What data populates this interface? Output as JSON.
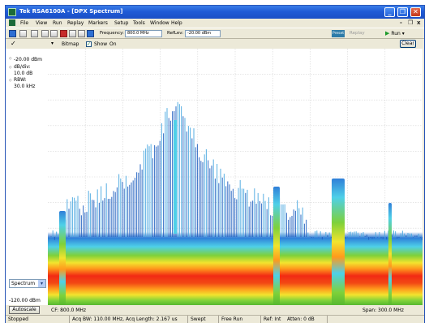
{
  "window": {
    "title": "Tek RSA6100A - [DPX Spectrum]",
    "controls": {
      "minimize": "_",
      "restore": "❐",
      "close": "✕"
    }
  },
  "menu": {
    "items": [
      "File",
      "View",
      "Run",
      "Replay",
      "Markers",
      "Setup",
      "Tools",
      "Window",
      "Help"
    ],
    "mdi_controls": {
      "minimize": "-",
      "restore": "❐",
      "close": "x"
    }
  },
  "toolbar": {
    "frequency_label": "Frequency:",
    "frequency_value": "800.0 MHz",
    "ref_lev_label": "RefLev:",
    "ref_lev_value": "-20.00 dBm",
    "preset_label": "Preset",
    "replay_label": "Replay",
    "run_label": "Run"
  },
  "display": {
    "dropdown_label": "▾",
    "bitmap_label": "Bitmap",
    "show_checked": true,
    "show_label": "Show",
    "on_label": "On",
    "clear_label": "Clear",
    "checkmark": "✓"
  },
  "left_panel": {
    "ref_level": "-20.00 dBm",
    "db_div_label": "dB/div:",
    "db_div_value": "10.0 dB",
    "rbw_label": "RBW:",
    "rbw_value": "30.0 kHz",
    "bottom_level": "-120.00 dBm",
    "trace_select": "Spectrum"
  },
  "axis": {
    "autoscale_label": "Autoscale",
    "cf_text": "CF: 800.0 MHz",
    "span_text": "Span: 300.0 MHz"
  },
  "status": {
    "state": "Stopped",
    "acq": "Acq BW: 110.00 MHz, Acq Length: 2.167 us",
    "sweep": "Swept",
    "trigger": "Free Run",
    "ref": "Ref: Int",
    "atten": "Atten: 0 dB"
  },
  "colors": {
    "band_red": "#f22a14",
    "band_orange": "#ff9a1c",
    "band_yellow": "#f2e42e",
    "band_green": "#7ed13a",
    "trace_blue": "#1f5fbf",
    "trace_cyan": "#4ed0e8"
  }
}
